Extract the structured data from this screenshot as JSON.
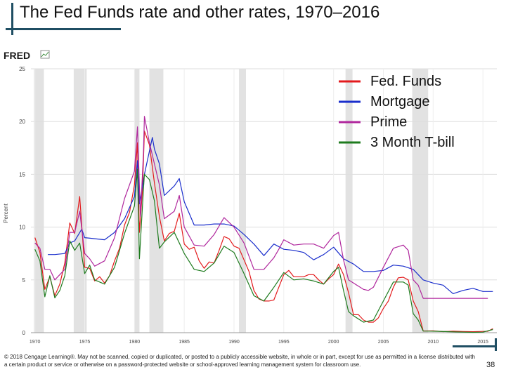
{
  "slide": {
    "title": "The Fed Funds rate and other rates, 1970–2016",
    "footer": "© 2018 Cengage Learning®. May not be scanned, copied or duplicated, or posted to a publicly accessible website, in whole or in part, except for use as permitted in a license distributed with a certain product or service or otherwise on a password-protected website or school-approved learning management system for classroom use.",
    "page_number": "38",
    "accent_color": "#1f4e63"
  },
  "chart_data": {
    "type": "line",
    "source_logo": "FRED",
    "xlabel": "",
    "ylabel": "Percent",
    "xlim": [
      1969.6,
      2016.4
    ],
    "ylim": [
      0,
      25
    ],
    "x_ticks": [
      1970,
      1975,
      1980,
      1985,
      1990,
      1995,
      2000,
      2005,
      2010,
      2015
    ],
    "y_ticks": [
      0,
      5,
      10,
      15,
      20,
      25
    ],
    "grid": true,
    "legend_position": "top-right",
    "recessions": [
      [
        1969.9,
        1970.9
      ],
      [
        1973.9,
        1975.2
      ],
      [
        1980.0,
        1980.5
      ],
      [
        1981.5,
        1982.9
      ],
      [
        1990.5,
        1991.2
      ],
      [
        2001.2,
        2001.9
      ],
      [
        2007.9,
        2009.5
      ]
    ],
    "series": [
      {
        "name": "Fed. Funds",
        "color": "#e31a1c",
        "x": [
          1970,
          1970.5,
          1971,
          1971.5,
          1972,
          1972.5,
          1973,
          1973.5,
          1974,
          1974.5,
          1975,
          1975.5,
          1976,
          1976.5,
          1977,
          1977.5,
          1978,
          1978.5,
          1979,
          1979.5,
          1980,
          1980.3,
          1980.5,
          1980.8,
          1981,
          1981.5,
          1982,
          1982.5,
          1983,
          1983.5,
          1984,
          1984.5,
          1985,
          1985.5,
          1986,
          1986.5,
          1987,
          1987.5,
          1988,
          1988.5,
          1989,
          1989.5,
          1990,
          1990.5,
          1991,
          1991.5,
          1992,
          1992.5,
          1993,
          1993.5,
          1994,
          1994.5,
          1995,
          1995.5,
          1996,
          1996.5,
          1997,
          1997.5,
          1998,
          1998.5,
          1999,
          1999.5,
          2000,
          2000.5,
          2001,
          2001.5,
          2002,
          2002.5,
          2003,
          2003.5,
          2004,
          2004.5,
          2005,
          2005.5,
          2006,
          2006.5,
          2007,
          2007.5,
          2008,
          2008.5,
          2009,
          2010,
          2011,
          2012,
          2013,
          2014,
          2015,
          2015.5,
          2016
        ],
        "y": [
          9.0,
          7.6,
          4.1,
          5.3,
          3.5,
          4.6,
          6.6,
          10.4,
          9.4,
          12.9,
          6.2,
          6.1,
          4.9,
          5.3,
          4.7,
          5.4,
          6.8,
          8.0,
          10.2,
          11.4,
          14.0,
          18.0,
          9.5,
          13.5,
          19.1,
          17.8,
          14.2,
          11.0,
          8.7,
          9.4,
          9.6,
          11.3,
          8.4,
          7.9,
          8.1,
          6.8,
          6.1,
          6.7,
          6.6,
          7.8,
          9.1,
          8.9,
          8.2,
          8.0,
          6.9,
          5.8,
          4.0,
          3.2,
          3.0,
          3.0,
          3.1,
          4.3,
          5.5,
          5.9,
          5.3,
          5.3,
          5.3,
          5.5,
          5.5,
          5.0,
          4.6,
          5.1,
          5.5,
          6.5,
          5.5,
          3.8,
          1.7,
          1.7,
          1.2,
          1.0,
          1.0,
          1.4,
          2.3,
          3.0,
          4.3,
          5.2,
          5.25,
          5.0,
          3.0,
          2.0,
          0.16,
          0.18,
          0.1,
          0.14,
          0.11,
          0.09,
          0.12,
          0.13,
          0.38
        ]
      },
      {
        "name": "Mortgage",
        "color": "#1a2ecc",
        "x": [
          1971.3,
          1972,
          1973,
          1973.5,
          1974,
          1974.7,
          1975,
          1976,
          1977,
          1978,
          1979,
          1980,
          1980.3,
          1980.5,
          1980.8,
          1981,
          1981.8,
          1982,
          1982.5,
          1983,
          1984,
          1984.5,
          1985,
          1986,
          1987,
          1988,
          1989,
          1990,
          1991,
          1992,
          1993,
          1994,
          1995,
          1996,
          1997,
          1998,
          1999,
          2000,
          2001,
          2002,
          2003,
          2004,
          2005,
          2006,
          2007,
          2008,
          2009,
          2010,
          2011,
          2012,
          2013,
          2014,
          2015,
          2016
        ],
        "y": [
          7.4,
          7.4,
          7.5,
          8.5,
          8.7,
          9.8,
          9.0,
          8.9,
          8.8,
          9.5,
          10.8,
          12.9,
          16.3,
          12.2,
          13.8,
          15.0,
          18.5,
          17.4,
          16.0,
          13.0,
          13.9,
          14.6,
          12.4,
          10.2,
          10.2,
          10.3,
          10.3,
          10.1,
          9.3,
          8.4,
          7.3,
          8.4,
          7.9,
          7.8,
          7.6,
          6.9,
          7.4,
          8.1,
          7.0,
          6.5,
          5.8,
          5.8,
          5.9,
          6.4,
          6.3,
          6.0,
          5.0,
          4.7,
          4.5,
          3.7,
          4.0,
          4.2,
          3.9,
          3.9
        ]
      },
      {
        "name": "Prime",
        "color": "#b0279d",
        "x": [
          1970,
          1970.5,
          1971,
          1971.5,
          1972,
          1972.5,
          1973,
          1973.5,
          1974,
          1974.5,
          1975,
          1975.5,
          1976,
          1977,
          1978,
          1979,
          1980,
          1980.3,
          1980.6,
          1980.9,
          1981,
          1981.5,
          1982,
          1982.5,
          1983,
          1984,
          1984.5,
          1985,
          1986,
          1987,
          1988,
          1989,
          1990,
          1991,
          1991.8,
          1992,
          1993,
          1994,
          1994.5,
          1995,
          1996,
          1997,
          1998,
          1999,
          2000,
          2000.5,
          2001,
          2001.5,
          2002,
          2003,
          2003.5,
          2004,
          2005,
          2006,
          2007,
          2007.5,
          2008,
          2008.5,
          2009,
          2010,
          2012,
          2014,
          2015,
          2015.5
        ],
        "y": [
          8.5,
          8.0,
          6.0,
          6.0,
          5.0,
          5.5,
          6.0,
          9.5,
          9.5,
          11.5,
          7.5,
          7.0,
          6.3,
          6.8,
          9.0,
          12.7,
          15.3,
          19.5,
          11.0,
          17.0,
          20.5,
          18.0,
          16.0,
          14.0,
          10.8,
          11.5,
          13.0,
          10.0,
          8.3,
          8.2,
          9.3,
          10.9,
          10.0,
          8.5,
          6.5,
          6.0,
          6.0,
          7.1,
          7.9,
          8.8,
          8.3,
          8.4,
          8.4,
          8.0,
          9.2,
          9.5,
          6.9,
          5.0,
          4.7,
          4.1,
          4.0,
          4.3,
          6.2,
          8.0,
          8.3,
          7.8,
          5.0,
          4.5,
          3.25,
          3.25,
          3.25,
          3.25,
          3.25,
          3.25
        ]
      },
      {
        "name": "3 Month T-bill",
        "color": "#1e7b1e",
        "x": [
          1970,
          1970.5,
          1971,
          1971.5,
          1972,
          1972.5,
          1973,
          1973.5,
          1974,
          1974.5,
          1975,
          1975.5,
          1976,
          1977,
          1978,
          1979,
          1980,
          1980.3,
          1980.5,
          1980.9,
          1981,
          1981.5,
          1982,
          1982.5,
          1983,
          1984,
          1985,
          1986,
          1987,
          1988,
          1989,
          1990,
          1991,
          1992,
          1993,
          1994,
          1995,
          1996,
          1997,
          1998,
          1999,
          2000,
          2000.5,
          2001,
          2001.5,
          2002,
          2003,
          2004,
          2005,
          2006,
          2007,
          2007.5,
          2008,
          2008.5,
          2009,
          2010,
          2012,
          2014,
          2015,
          2016
        ],
        "y": [
          7.9,
          6.8,
          3.4,
          5.4,
          3.3,
          4.0,
          5.4,
          8.7,
          7.8,
          8.5,
          5.6,
          6.4,
          5.0,
          4.6,
          6.2,
          9.4,
          12.0,
          15.5,
          7.0,
          13.6,
          15.0,
          14.5,
          12.5,
          8.0,
          8.6,
          9.5,
          7.5,
          6.0,
          5.8,
          6.6,
          8.2,
          7.6,
          5.6,
          3.5,
          3.0,
          4.3,
          5.7,
          5.0,
          5.1,
          4.9,
          4.6,
          5.8,
          6.2,
          4.0,
          2.0,
          1.6,
          1.0,
          1.2,
          3.0,
          4.8,
          4.8,
          4.5,
          1.8,
          1.2,
          0.15,
          0.14,
          0.08,
          0.03,
          0.05,
          0.3
        ]
      }
    ]
  }
}
